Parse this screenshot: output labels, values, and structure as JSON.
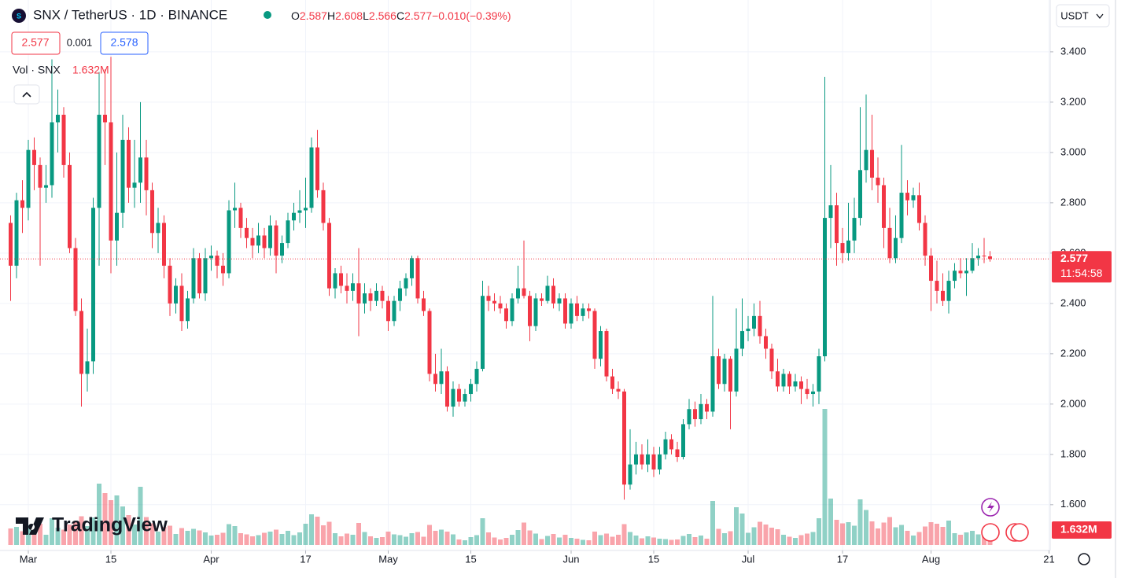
{
  "header": {
    "symbol": "SNX / TetherUS · 1D · BINANCE",
    "o_label": "O",
    "h_label": "H",
    "l_label": "L",
    "c_label": "C",
    "change": {
      "value": -0.01,
      "label": "−0.010"
    },
    "change_percent": {
      "value": -0.39,
      "label": "(−0.39%)"
    },
    "bid": 2.577,
    "spread": 0.001,
    "ask": 2.578,
    "quote_currency": "USDT",
    "brand": "TradingView",
    "countdown": "11:54:58"
  },
  "chart_data": {
    "type": "candlestick",
    "up_color": "#089981",
    "down_color": "#f23645",
    "grid": true,
    "ylim": [
      1.44,
      3.606
    ],
    "yticks": [
      {
        "value": 1.6,
        "label": "1.600"
      },
      {
        "value": 1.8,
        "label": "1.800"
      },
      {
        "value": 2.0,
        "label": "2.000"
      },
      {
        "value": 2.2,
        "label": "2.200"
      },
      {
        "value": 2.4,
        "label": "2.400"
      },
      {
        "value": 2.6,
        "label": "2.600"
      },
      {
        "value": 2.8,
        "label": "2.800"
      },
      {
        "value": 3.0,
        "label": "3.000"
      },
      {
        "value": 3.2,
        "label": "3.200"
      },
      {
        "value": 3.4,
        "label": "3.400"
      }
    ],
    "xticks": [
      {
        "value": "Mar 1",
        "label": "Mar"
      },
      {
        "value": "Mar 15",
        "label": "15"
      },
      {
        "value": "Apr 1",
        "label": "Apr"
      },
      {
        "value": "Apr 17",
        "label": "17"
      },
      {
        "value": "May 1",
        "label": "May"
      },
      {
        "value": "May 15",
        "label": "15"
      },
      {
        "value": "Jun 1",
        "label": "Jun"
      },
      {
        "value": "Jun 15",
        "label": "15"
      },
      {
        "value": "Jul 1",
        "label": "Jul"
      },
      {
        "value": "Jul 17",
        "label": "17"
      },
      {
        "value": "Aug 1",
        "label": "Aug"
      },
      {
        "value": "Aug 21",
        "label": "21"
      }
    ],
    "x": [
      "Feb 26",
      "Feb 27",
      "Feb 28",
      "Mar 1",
      "Mar 2",
      "Mar 3",
      "Mar 4",
      "Mar 5",
      "Mar 6",
      "Mar 7",
      "Mar 8",
      "Mar 9",
      "Mar 10",
      "Mar 11",
      "Mar 12",
      "Mar 13",
      "Mar 14",
      "Mar 15",
      "Mar 16",
      "Mar 17",
      "Mar 18",
      "Mar 19",
      "Mar 20",
      "Mar 21",
      "Mar 22",
      "Mar 23",
      "Mar 24",
      "Mar 25",
      "Mar 26",
      "Mar 27",
      "Mar 28",
      "Mar 29",
      "Mar 30",
      "Mar 31",
      "Apr 1",
      "Apr 2",
      "Apr 3",
      "Apr 4",
      "Apr 5",
      "Apr 6",
      "Apr 7",
      "Apr 8",
      "Apr 9",
      "Apr 10",
      "Apr 11",
      "Apr 12",
      "Apr 13",
      "Apr 14",
      "Apr 15",
      "Apr 16",
      "Apr 17",
      "Apr 18",
      "Apr 19",
      "Apr 20",
      "Apr 21",
      "Apr 22",
      "Apr 23",
      "Apr 24",
      "Apr 25",
      "Apr 26",
      "Apr 27",
      "Apr 28",
      "Apr 29",
      "Apr 30",
      "May 1",
      "May 2",
      "May 3",
      "May 4",
      "May 5",
      "May 6",
      "May 7",
      "May 8",
      "May 9",
      "May 10",
      "May 11",
      "May 12",
      "May 13",
      "May 14",
      "May 15",
      "May 16",
      "May 17",
      "May 18",
      "May 19",
      "May 20",
      "May 21",
      "May 22",
      "May 23",
      "May 24",
      "May 25",
      "May 26",
      "May 27",
      "May 28",
      "May 29",
      "May 30",
      "May 31",
      "Jun 1",
      "Jun 2",
      "Jun 3",
      "Jun 4",
      "Jun 5",
      "Jun 6",
      "Jun 7",
      "Jun 8",
      "Jun 9",
      "Jun 10",
      "Jun 11",
      "Jun 12",
      "Jun 13",
      "Jun 14",
      "Jun 15",
      "Jun 16",
      "Jun 17",
      "Jun 18",
      "Jun 19",
      "Jun 20",
      "Jun 21",
      "Jun 22",
      "Jun 23",
      "Jun 24",
      "Jun 25",
      "Jun 26",
      "Jun 27",
      "Jun 28",
      "Jun 29",
      "Jun 30",
      "Jul 1",
      "Jul 2",
      "Jul 3",
      "Jul 4",
      "Jul 5",
      "Jul 6",
      "Jul 7",
      "Jul 8",
      "Jul 9",
      "Jul 10",
      "Jul 11",
      "Jul 12",
      "Jul 13",
      "Jul 14",
      "Jul 15",
      "Jul 16",
      "Jul 17",
      "Jul 18",
      "Jul 19",
      "Jul 20",
      "Jul 21",
      "Jul 22",
      "Jul 23",
      "Jul 24",
      "Jul 25",
      "Jul 26",
      "Jul 27",
      "Jul 28",
      "Jul 29",
      "Jul 30",
      "Jul 31",
      "Aug 1",
      "Aug 2",
      "Aug 3",
      "Aug 4",
      "Aug 5",
      "Aug 6",
      "Aug 7",
      "Aug 8",
      "Aug 9",
      "Aug 10",
      "Aug 11"
    ],
    "open": [
      2.72,
      2.55,
      2.81,
      2.78,
      3.01,
      2.95,
      2.86,
      2.87,
      3.12,
      3.15,
      2.95,
      2.62,
      2.37,
      2.12,
      2.17,
      2.78,
      3.15,
      3.12,
      2.65,
      2.76,
      3.05,
      2.86,
      2.88,
      2.98,
      2.85,
      2.68,
      2.72,
      2.55,
      2.4,
      2.47,
      2.33,
      2.42,
      2.58,
      2.44,
      2.58,
      2.59,
      2.55,
      2.52,
      2.77,
      2.78,
      2.7,
      2.66,
      2.63,
      2.67,
      2.62,
      2.71,
      2.59,
      2.64,
      2.73,
      2.76,
      2.77,
      2.78,
      3.02,
      2.85,
      2.72,
      2.46,
      2.52,
      2.47,
      2.45,
      2.48,
      2.4,
      2.44,
      2.41,
      2.45,
      2.41,
      2.33,
      2.41,
      2.46,
      2.5,
      2.58,
      2.42,
      2.37,
      2.12,
      2.08,
      2.13,
      1.99,
      2.06,
      2.01,
      2.04,
      2.08,
      2.14,
      2.43,
      2.41,
      2.4,
      2.38,
      2.33,
      2.42,
      2.46,
      2.43,
      2.31,
      2.42,
      2.41,
      2.47,
      2.4,
      2.42,
      2.32,
      2.4,
      2.35,
      2.38,
      2.37,
      2.18,
      2.29,
      2.11,
      2.06,
      2.05,
      1.68,
      1.76,
      1.8,
      1.76,
      1.8,
      1.74,
      1.8,
      1.86,
      1.82,
      1.79,
      1.92,
      1.98,
      1.94,
      2.0,
      1.97,
      2.19,
      2.08,
      2.18,
      2.05,
      2.22,
      2.29,
      2.3,
      2.35,
      2.27,
      2.22,
      2.13,
      2.07,
      2.12,
      2.07,
      2.09,
      2.06,
      2.04,
      2.05,
      2.19,
      2.74,
      2.79,
      2.64,
      2.6,
      2.65,
      2.74,
      2.93,
      3.01,
      2.9,
      2.87,
      2.7,
      2.58,
      2.66,
      2.84,
      2.81,
      2.83,
      2.72,
      2.59,
      2.49,
      2.45,
      2.41,
      2.49,
      2.53,
      2.52,
      2.53,
      2.58,
      2.59,
      2.587
    ],
    "high": [
      2.75,
      2.84,
      2.89,
      3.05,
      3.06,
      2.98,
      2.95,
      3.37,
      3.25,
      3.18,
      3.0,
      2.66,
      2.42,
      2.3,
      2.82,
      3.32,
      3.33,
      3.38,
      3.0,
      3.15,
      3.1,
      3.05,
      3.2,
      3.05,
      2.88,
      2.78,
      2.75,
      2.58,
      2.5,
      2.52,
      2.45,
      2.62,
      2.6,
      2.62,
      2.63,
      2.61,
      2.6,
      2.81,
      2.88,
      2.8,
      2.74,
      2.7,
      2.72,
      2.7,
      2.75,
      2.73,
      2.67,
      2.76,
      2.8,
      2.85,
      2.9,
      3.06,
      3.09,
      2.88,
      2.74,
      2.54,
      2.55,
      2.52,
      2.52,
      2.62,
      2.48,
      2.46,
      2.48,
      2.47,
      2.43,
      2.43,
      2.49,
      2.52,
      2.59,
      2.59,
      2.45,
      2.38,
      2.2,
      2.22,
      2.15,
      2.09,
      2.08,
      2.06,
      2.1,
      2.17,
      2.49,
      2.47,
      2.44,
      2.43,
      2.4,
      2.44,
      2.55,
      2.65,
      2.45,
      2.44,
      2.44,
      2.51,
      2.5,
      2.44,
      2.44,
      2.42,
      2.43,
      2.4,
      2.4,
      2.38,
      2.31,
      2.3,
      2.14,
      2.09,
      2.06,
      1.9,
      1.85,
      1.84,
      1.86,
      1.83,
      1.83,
      1.89,
      1.88,
      1.85,
      1.94,
      2.02,
      2.01,
      2.04,
      2.02,
      2.43,
      2.22,
      2.2,
      2.19,
      2.38,
      2.42,
      2.35,
      2.4,
      2.41,
      2.3,
      2.24,
      2.18,
      2.14,
      2.13,
      2.12,
      2.11,
      2.1,
      2.08,
      2.22,
      3.3,
      2.95,
      2.84,
      2.7,
      2.8,
      2.82,
      3.18,
      3.23,
      3.15,
      2.98,
      2.9,
      2.78,
      2.75,
      3.03,
      2.89,
      2.86,
      2.88,
      2.75,
      2.62,
      2.57,
      2.52,
      2.53,
      2.56,
      2.58,
      2.58,
      2.64,
      2.62,
      2.66,
      2.608
    ],
    "low": [
      2.41,
      2.5,
      2.68,
      2.73,
      2.85,
      2.55,
      2.8,
      2.82,
      3.0,
      2.9,
      2.6,
      2.35,
      1.99,
      2.05,
      2.12,
      2.55,
      2.95,
      2.52,
      2.55,
      2.7,
      2.8,
      2.78,
      2.8,
      2.75,
      2.62,
      2.6,
      2.5,
      2.35,
      2.36,
      2.29,
      2.3,
      2.4,
      2.42,
      2.41,
      2.53,
      2.5,
      2.47,
      2.5,
      2.7,
      2.66,
      2.62,
      2.58,
      2.6,
      2.58,
      2.59,
      2.52,
      2.56,
      2.62,
      2.69,
      2.72,
      2.7,
      2.76,
      2.82,
      2.69,
      2.43,
      2.42,
      2.44,
      2.4,
      2.41,
      2.27,
      2.36,
      2.37,
      2.39,
      2.38,
      2.29,
      2.31,
      2.37,
      2.43,
      2.47,
      2.4,
      2.35,
      2.09,
      2.05,
      2.04,
      1.97,
      1.95,
      1.99,
      1.99,
      2.01,
      2.05,
      2.13,
      2.37,
      2.37,
      2.36,
      2.3,
      2.31,
      2.4,
      2.42,
      2.25,
      2.29,
      2.39,
      2.4,
      2.38,
      2.37,
      2.3,
      2.3,
      2.33,
      2.33,
      2.34,
      2.14,
      2.15,
      2.09,
      2.04,
      2.02,
      1.62,
      1.66,
      1.72,
      1.74,
      1.73,
      1.71,
      1.72,
      1.78,
      1.8,
      1.77,
      1.78,
      1.9,
      1.91,
      1.92,
      1.94,
      1.95,
      2.06,
      2.05,
      1.9,
      2.03,
      2.19,
      2.25,
      2.27,
      2.24,
      2.18,
      2.1,
      2.05,
      2.05,
      2.04,
      2.05,
      2.0,
      2.02,
      1.99,
      2.0,
      2.17,
      2.62,
      2.55,
      2.56,
      2.57,
      2.6,
      2.71,
      2.88,
      2.85,
      2.8,
      2.62,
      2.56,
      2.56,
      2.64,
      2.75,
      2.78,
      2.69,
      2.55,
      2.37,
      2.4,
      2.39,
      2.36,
      2.46,
      2.5,
      2.43,
      2.52,
      2.55,
      2.56,
      2.566
    ],
    "close": [
      2.55,
      2.81,
      2.78,
      3.01,
      2.95,
      2.86,
      2.87,
      3.12,
      3.15,
      2.95,
      2.62,
      2.37,
      2.12,
      2.17,
      2.78,
      3.15,
      3.12,
      2.65,
      2.76,
      3.05,
      2.86,
      2.88,
      2.98,
      2.85,
      2.68,
      2.72,
      2.55,
      2.4,
      2.47,
      2.33,
      2.42,
      2.58,
      2.44,
      2.58,
      2.59,
      2.55,
      2.52,
      2.77,
      2.78,
      2.7,
      2.66,
      2.63,
      2.67,
      2.62,
      2.71,
      2.59,
      2.64,
      2.73,
      2.76,
      2.77,
      2.78,
      3.02,
      2.85,
      2.72,
      2.46,
      2.52,
      2.47,
      2.45,
      2.48,
      2.4,
      2.44,
      2.41,
      2.45,
      2.41,
      2.33,
      2.41,
      2.46,
      2.5,
      2.58,
      2.42,
      2.37,
      2.12,
      2.08,
      2.13,
      1.99,
      2.06,
      2.01,
      2.04,
      2.08,
      2.14,
      2.43,
      2.41,
      2.4,
      2.38,
      2.33,
      2.42,
      2.46,
      2.43,
      2.31,
      2.42,
      2.41,
      2.47,
      2.4,
      2.42,
      2.32,
      2.4,
      2.35,
      2.38,
      2.37,
      2.18,
      2.29,
      2.11,
      2.06,
      2.05,
      1.68,
      1.76,
      1.8,
      1.76,
      1.8,
      1.74,
      1.8,
      1.86,
      1.82,
      1.79,
      1.92,
      1.98,
      1.94,
      2.0,
      1.97,
      2.19,
      2.08,
      2.18,
      2.05,
      2.22,
      2.29,
      2.3,
      2.35,
      2.27,
      2.22,
      2.13,
      2.07,
      2.12,
      2.07,
      2.09,
      2.06,
      2.04,
      2.05,
      2.19,
      2.74,
      2.79,
      2.64,
      2.6,
      2.65,
      2.74,
      2.93,
      3.01,
      2.9,
      2.87,
      2.7,
      2.58,
      2.66,
      2.84,
      2.81,
      2.83,
      2.72,
      2.59,
      2.49,
      2.45,
      2.41,
      2.49,
      2.53,
      2.52,
      2.53,
      2.58,
      2.59,
      2.587,
      2.577
    ],
    "volume": {
      "name": "Vol · SNX",
      "last_label": "1.632M",
      "values": [
        4.2,
        4.6,
        3.5,
        5.1,
        3.8,
        5.4,
        2.6,
        6.8,
        4.4,
        3.9,
        5.2,
        6.1,
        7.3,
        4.8,
        7.0,
        15.6,
        13.2,
        11.4,
        12.6,
        9.8,
        7.6,
        5.2,
        14.8,
        7.1,
        5.5,
        3.4,
        4.6,
        4.9,
        2.8,
        4.3,
        3.6,
        4.1,
        3.7,
        3.2,
        2.4,
        2.6,
        3.1,
        5.3,
        4.8,
        3.0,
        2.7,
        2.2,
        2.5,
        3.1,
        3.4,
        3.9,
        2.8,
        3.6,
        2.5,
        3.2,
        5.4,
        7.8,
        7.2,
        5.0,
        5.9,
        3.0,
        2.2,
        2.9,
        2.6,
        5.6,
        3.3,
        2.2,
        1.8,
        2.0,
        3.4,
        2.7,
        2.5,
        2.1,
        3.0,
        3.3,
        2.1,
        5.1,
        3.6,
        3.9,
        3.4,
        2.7,
        1.4,
        1.2,
        2.0,
        2.5,
        6.8,
        3.2,
        1.9,
        1.4,
        1.8,
        2.6,
        3.8,
        5.7,
        3.7,
        2.9,
        1.5,
        2.3,
        2.8,
        1.9,
        2.6,
        1.8,
        1.6,
        1.3,
        1.2,
        3.4,
        2.5,
        2.9,
        2.1,
        2.6,
        5.3,
        3.3,
        2.4,
        1.7,
        2.2,
        1.9,
        1.6,
        1.5,
        1.3,
        1.4,
        2.3,
        2.8,
        2.0,
        2.4,
        1.6,
        11.2,
        4.1,
        3.0,
        3.5,
        9.6,
        8.0,
        3.1,
        4.5,
        5.9,
        5.2,
        4.4,
        4.0,
        2.6,
        2.1,
        1.8,
        2.5,
        2.9,
        3.3,
        6.8,
        34.6,
        11.8,
        6.4,
        5.5,
        5.8,
        4.9,
        11.6,
        8.9,
        6.0,
        4.2,
        5.7,
        7.1,
        4.5,
        5.1,
        3.6,
        2.4,
        3.3,
        4.7,
        5.8,
        5.4,
        4.6,
        6.2,
        3.0,
        2.6,
        3.2,
        3.6,
        2.7,
        3.1,
        1.632
      ]
    }
  }
}
